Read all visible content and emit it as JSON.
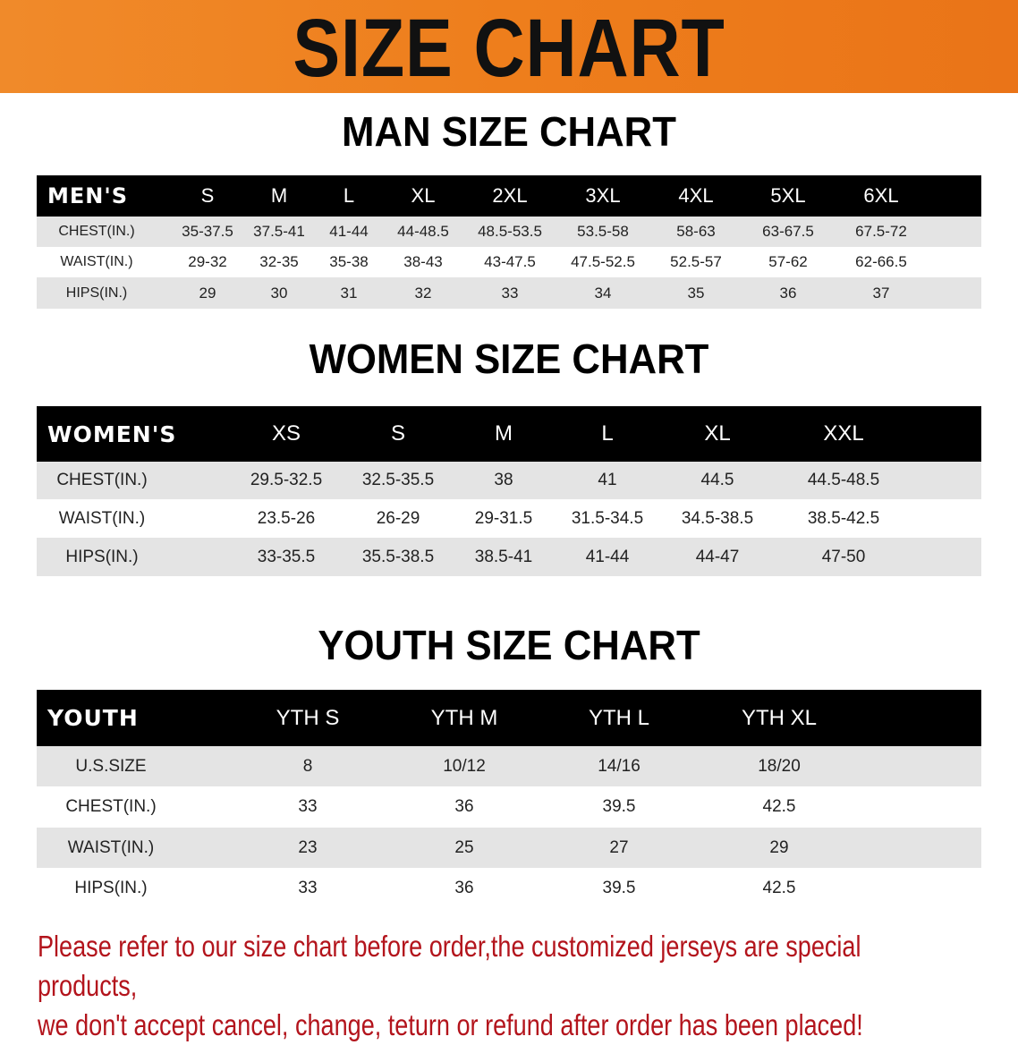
{
  "banner": {
    "title": "SIZE CHART",
    "color": "#ee7e1c"
  },
  "sections": {
    "men_title": "MAN SIZE CHART",
    "women_title": "WOMEN SIZE CHART",
    "youth_title": "YOUTH SIZE CHART"
  },
  "footer": {
    "line1": "Please refer to our size chart before order,the customized jerseys are special products,",
    "line2": "we don't accept cancel, change, teturn or refund after order has been placed!",
    "color": "#b3141c"
  },
  "chart_data": [
    {
      "type": "table",
      "title": "MAN SIZE CHART",
      "columns": [
        "MEN'S",
        "S",
        "M",
        "L",
        "XL",
        "2XL",
        "3XL",
        "4XL",
        "5XL",
        "6XL"
      ],
      "rows": [
        [
          "CHEST(IN.)",
          "35-37.5",
          "37.5-41",
          "41-44",
          "44-48.5",
          "48.5-53.5",
          "53.5-58",
          "58-63",
          "63-67.5",
          "67.5-72"
        ],
        [
          "WAIST(IN.)",
          "29-32",
          "32-35",
          "35-38",
          "38-43",
          "43-47.5",
          "47.5-52.5",
          "52.5-57",
          "57-62",
          "62-66.5"
        ],
        [
          "HIPS(IN.)",
          "29",
          "30",
          "31",
          "32",
          "33",
          "34",
          "35",
          "36",
          "37"
        ]
      ]
    },
    {
      "type": "table",
      "title": "WOMEN SIZE CHART",
      "columns": [
        "WOMEN'S",
        "XS",
        "S",
        "M",
        "L",
        "XL",
        "XXL"
      ],
      "rows": [
        [
          "CHEST(IN.)",
          "29.5-32.5",
          "32.5-35.5",
          "38",
          "41",
          "44.5",
          "44.5-48.5"
        ],
        [
          "WAIST(IN.)",
          "23.5-26",
          "26-29",
          "29-31.5",
          "31.5-34.5",
          "34.5-38.5",
          "38.5-42.5"
        ],
        [
          "HIPS(IN.)",
          "33-35.5",
          "35.5-38.5",
          "38.5-41",
          "41-44",
          "44-47",
          "47-50"
        ]
      ]
    },
    {
      "type": "table",
      "title": "YOUTH SIZE CHART",
      "columns": [
        "YOUTH",
        "YTH S",
        "YTH M",
        "YTH L",
        "YTH XL"
      ],
      "rows": [
        [
          "U.S.SIZE",
          "8",
          "10/12",
          "14/16",
          "18/20"
        ],
        [
          "CHEST(IN.)",
          "33",
          "36",
          "39.5",
          "42.5"
        ],
        [
          "WAIST(IN.)",
          "23",
          "25",
          "27",
          "29"
        ],
        [
          "HIPS(IN.)",
          "33",
          "36",
          "39.5",
          "42.5"
        ]
      ]
    }
  ]
}
